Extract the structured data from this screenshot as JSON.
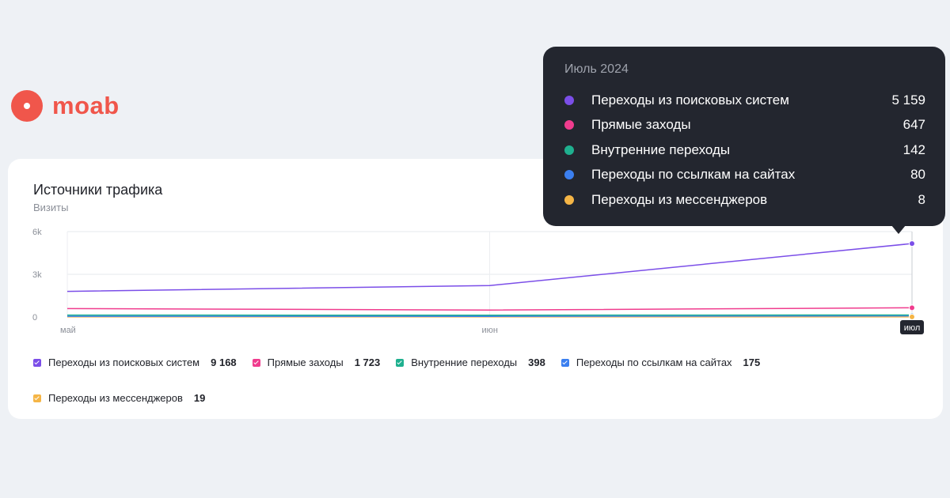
{
  "logo": {
    "text": "moab",
    "color": "#f0564b"
  },
  "card": {
    "title": "Источники трафика",
    "subtitle": "Визиты"
  },
  "tooltip": {
    "title": "Июль 2024",
    "rows": [
      {
        "label": "Переходы из поисковых систем",
        "value": "5 159",
        "color": "#7b4ee8"
      },
      {
        "label": "Прямые заходы",
        "value": "647",
        "color": "#f03c8e"
      },
      {
        "label": "Внутренние переходы",
        "value": "142",
        "color": "#1fb08f"
      },
      {
        "label": "Переходы по ссылкам на сайтах",
        "value": "80",
        "color": "#3b7ff0"
      },
      {
        "label": "Переходы из мессенджеров",
        "value": "8",
        "color": "#f5b546"
      }
    ]
  },
  "legend": [
    {
      "label": "Переходы из поисковых систем",
      "value": "9 168",
      "color": "#7b4ee8"
    },
    {
      "label": "Прямые заходы",
      "value": "1 723",
      "color": "#f03c8e"
    },
    {
      "label": "Внутренние переходы",
      "value": "398",
      "color": "#1fb08f"
    },
    {
      "label": "Переходы по ссылкам на сайтах",
      "value": "175",
      "color": "#3b7ff0"
    },
    {
      "label": "Переходы из мессенджеров",
      "value": "19",
      "color": "#f5b546"
    }
  ],
  "chart_data": {
    "type": "line",
    "title": "Источники трафика",
    "ylabel": "Визиты",
    "categories": [
      "май",
      "июн",
      "июл"
    ],
    "highlighted_category": "июл",
    "y_ticks": [
      "0",
      "3k",
      "6k"
    ],
    "ylim": [
      0,
      6000
    ],
    "grid": true,
    "legend_position": "bottom",
    "series": [
      {
        "name": "Переходы из поисковых систем",
        "color": "#7b4ee8",
        "values": [
          1800,
          2210,
          5159
        ]
      },
      {
        "name": "Прямые заходы",
        "color": "#f03c8e",
        "values": [
          590,
          486,
          647
        ]
      },
      {
        "name": "Внутренние переходы",
        "color": "#1fb08f",
        "values": [
          130,
          126,
          142
        ]
      },
      {
        "name": "Переходы по ссылкам на сайтах",
        "color": "#3b7ff0",
        "values": [
          50,
          45,
          80
        ]
      },
      {
        "name": "Переходы из мессенджеров",
        "color": "#f5b546",
        "values": [
          6,
          5,
          8
        ]
      }
    ]
  }
}
